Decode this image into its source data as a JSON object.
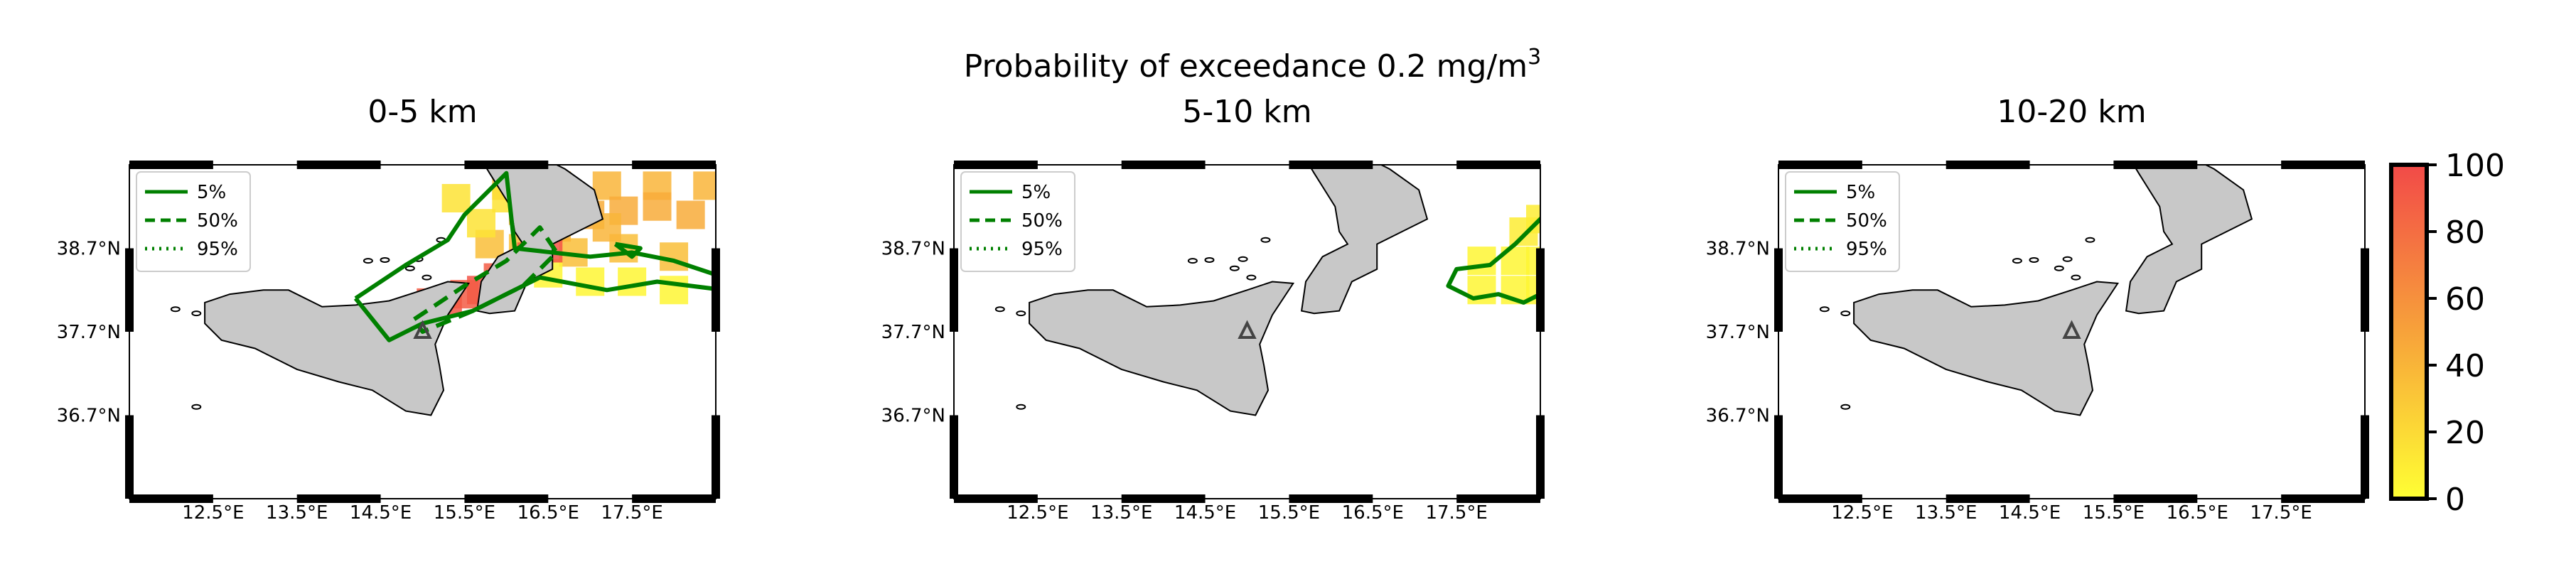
{
  "figure": {
    "suptitle_main": "Probability of exceedance 0.2 mg/m",
    "suptitle_sup": "3",
    "colorbar": {
      "ticks": [
        "0",
        "20",
        "40",
        "60",
        "80",
        "100"
      ],
      "range": [
        0,
        100
      ],
      "colors": {
        "low": "#ffff33",
        "mid": "#f7a23a",
        "high": "#f24a48"
      }
    },
    "colors": {
      "land": "#c8c8c8",
      "contour": "#008000",
      "volcano": "#444444"
    }
  },
  "chart_data": [
    {
      "type": "heatmap",
      "title": "0-5 km",
      "xlabel": "",
      "ylabel": "",
      "x_ticks": [
        "12.5°E",
        "13.5°E",
        "14.5°E",
        "15.5°E",
        "16.5°E",
        "17.5°E"
      ],
      "y_ticks": [
        "38.7°N",
        "37.7°N",
        "36.7°N"
      ],
      "xlim": [
        11.5,
        18.5
      ],
      "ylim": [
        35.7,
        39.7
      ],
      "legend": {
        "placement": "top-left",
        "entries": [
          "5%",
          "50%",
          "95%"
        ]
      },
      "volcano": {
        "lon": 15.0,
        "lat": 37.7
      },
      "plume": [
        {
          "lon": [
            16.0,
            16.6,
            17.2,
            17.8,
            18.4
          ],
          "lat": [
            39.45,
            39.45,
            39.45,
            39.45,
            39.45
          ],
          "p": 40
        },
        {
          "lon": [
            16.2,
            16.6,
            17.0,
            17.4,
            17.8,
            18.2
          ],
          "lat": [
            39.15,
            39.2,
            39.1,
            39.15,
            39.2,
            39.1
          ],
          "p": 45
        },
        {
          "lon": [
            15.8,
            16.2,
            16.8,
            17.4,
            18.0
          ],
          "lat": [
            38.75,
            38.7,
            38.65,
            38.7,
            38.6
          ],
          "p": 35
        },
        {
          "lon": [
            16.6,
            17.2
          ],
          "lat": [
            38.95,
            38.95
          ],
          "p": 40
        },
        {
          "lon": [
            15.4,
            15.7,
            16.0
          ],
          "lat": [
            39.3,
            39.0,
            39.3
          ],
          "p": 15
        },
        {
          "lon": [
            16.0,
            16.5,
            17.0,
            17.5,
            18.0
          ],
          "lat": [
            38.35,
            38.4,
            38.3,
            38.3,
            38.2
          ],
          "p": 5
        },
        {
          "lon": [
            14.9,
            15.3,
            15.7,
            16.1,
            16.5
          ],
          "lat": [
            37.85,
            38.05,
            38.2,
            38.45,
            38.7
          ],
          "p": 95
        },
        {
          "lon": [
            15.1,
            15.5,
            15.9,
            16.3
          ],
          "lat": [
            38.05,
            38.15,
            38.35,
            38.6
          ],
          "p": 90
        }
      ],
      "contours": [
        {
          "level": "5%",
          "lon": [
            14.2,
            14.8,
            15.3,
            15.5,
            16.0,
            16.1,
            17.0,
            17.5,
            18.0,
            18.6,
            18.6,
            17.8,
            17.2,
            16.4,
            15.6,
            15.0,
            14.6,
            14.2
          ],
          "lat": [
            38.1,
            38.5,
            38.8,
            39.1,
            39.6,
            38.7,
            38.6,
            38.65,
            38.55,
            38.35,
            38.2,
            38.3,
            38.2,
            38.35,
            37.95,
            37.8,
            37.6,
            38.1
          ]
        },
        {
          "level": "5%",
          "lon": [
            17.3,
            17.6,
            17.5,
            17.3
          ],
          "lat": [
            38.75,
            38.7,
            38.6,
            38.75
          ]
        },
        {
          "level": "50%",
          "lon": [
            14.9,
            15.5,
            16.0,
            16.4,
            16.6,
            16.2,
            15.6,
            15.0,
            14.9
          ],
          "lat": [
            37.85,
            38.25,
            38.55,
            38.95,
            38.65,
            38.25,
            37.95,
            37.7,
            37.85
          ]
        }
      ]
    },
    {
      "type": "heatmap",
      "title": "5-10 km",
      "xlabel": "",
      "ylabel": "",
      "x_ticks": [
        "12.5°E",
        "13.5°E",
        "14.5°E",
        "15.5°E",
        "16.5°E",
        "17.5°E"
      ],
      "y_ticks": [
        "38.7°N",
        "37.7°N",
        "36.7°N"
      ],
      "xlim": [
        11.5,
        18.5
      ],
      "ylim": [
        35.7,
        39.7
      ],
      "legend": {
        "placement": "top-left",
        "entries": [
          "5%",
          "50%",
          "95%"
        ]
      },
      "volcano": {
        "lon": 15.0,
        "lat": 37.7
      },
      "plume": [
        {
          "lon": [
            17.8,
            18.2,
            18.5
          ],
          "lat": [
            38.55,
            38.55,
            38.55
          ],
          "p": 5
        },
        {
          "lon": [
            17.8,
            18.2,
            18.5
          ],
          "lat": [
            38.2,
            38.2,
            38.2
          ],
          "p": 5
        },
        {
          "lon": [
            18.3,
            18.5
          ],
          "lat": [
            38.9,
            39.05
          ],
          "p": 10
        }
      ],
      "contours": [
        {
          "level": "5%",
          "lon": [
            18.6,
            18.2,
            17.9,
            17.5,
            17.4,
            17.7,
            18.0,
            18.3,
            18.6
          ],
          "lat": [
            39.15,
            38.75,
            38.5,
            38.45,
            38.25,
            38.1,
            38.15,
            38.05,
            38.2
          ]
        }
      ]
    },
    {
      "type": "heatmap",
      "title": "10-20 km",
      "xlabel": "",
      "ylabel": "",
      "x_ticks": [
        "12.5°E",
        "13.5°E",
        "14.5°E",
        "15.5°E",
        "16.5°E",
        "17.5°E"
      ],
      "y_ticks": [
        "38.7°N",
        "37.7°N",
        "36.7°N"
      ],
      "xlim": [
        11.5,
        18.5
      ],
      "ylim": [
        35.7,
        39.7
      ],
      "legend": {
        "placement": "top-left",
        "entries": [
          "5%",
          "50%",
          "95%"
        ]
      },
      "volcano": {
        "lon": 15.0,
        "lat": 37.7
      },
      "plume": [],
      "contours": []
    }
  ]
}
